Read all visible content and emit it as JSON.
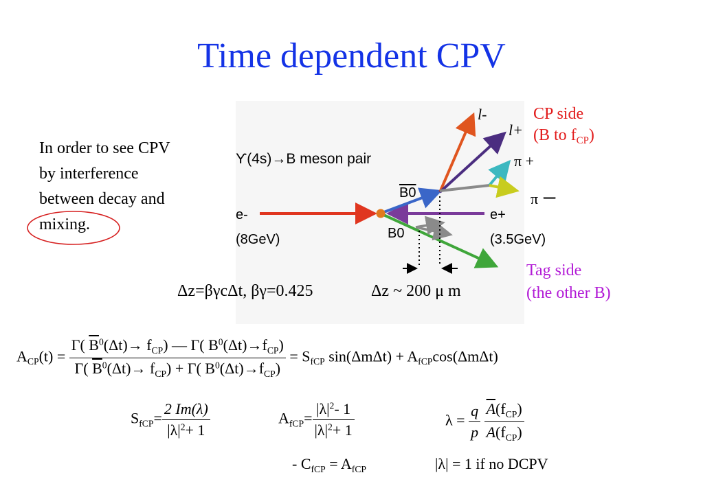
{
  "slide": {
    "title": "Time dependent CPV",
    "intro_lines": [
      "In order to see CPV",
      "by  interference",
      "between decay and",
      "mixing."
    ],
    "cp_side": {
      "line1": "CP side",
      "line2_prefix": "(B to f",
      "line2_sub": "CP",
      "line2_suffix": ")"
    },
    "tag_side": {
      "line1": "Tag side",
      "line2": "(the other B)"
    }
  },
  "diagram": {
    "upsilon_text": "ϒ(4s)→B meson pair",
    "b0bar_label": "B0",
    "b0_label": "B0",
    "e_minus": "e-",
    "e_minus_energy": "(8GeV)",
    "e_plus": "e+",
    "e_plus_energy": "(3.5GeV)",
    "lepton_minus": "l-",
    "lepton_plus": "l+",
    "pi_plus": "π +",
    "pi_minus": "π ー",
    "dz_formula": "Δz=βγcΔt, βγ=0.425",
    "dz_approx": "Δz ~ 200 μ m",
    "colors": {
      "electron_beam": "#e0361f",
      "positron_beam": "#7a3a9a",
      "b0bar": "#3a66c8",
      "b0": "#3fa63a",
      "lepton_minus": "#e0551f",
      "lepton_plus": "#4b2d80",
      "pi_plus": "#3cb8c0",
      "pi_minus": "#c8cc1e",
      "vertex": "#e07a1e"
    }
  },
  "equations": {
    "acp_lhs": "A",
    "acp_lhs_sub": "CP",
    "acp_lhs_arg": "(t) =",
    "gamma": "Γ(",
    "b0": "B",
    "b0_sup": "0",
    "dt_arrow": "(Δt)→",
    "f": "f",
    "f_sub": "CP",
    "close": ")",
    "minus": "—",
    "plus": "+",
    "rhs_eq": "=",
    "s": "S",
    "s_sub": "fCP",
    "sin_term": "sin(ΔmΔt)",
    "a": "A",
    "a_sub": "fCP",
    "cos_term": "cos(ΔmΔt)",
    "s_num": "2 Im(λ)",
    "s_den_lambda": "|λ|",
    "s_den_sup": "2",
    "s_den_rest": "+ 1",
    "a_num_lambda": "|λ|",
    "a_num_sup": "2",
    "a_num_rest": "- 1",
    "a_den_lambda": "|λ|",
    "a_den_sup": "2",
    "a_den_rest": "+ 1",
    "lambda_eq": "λ =",
    "q": "q",
    "p": "p",
    "a_bar": "A",
    "a_plain": "A",
    "fcp_arg_f": "(f",
    "fcp_arg_sub": "CP",
    "fcp_arg_close": ")",
    "c_minus": "- C",
    "c_sub": "fCP",
    "c_eq": "= A",
    "c_eq_sub": "fCP",
    "no_dcpv": "|λ| = 1 if no DCPV"
  }
}
